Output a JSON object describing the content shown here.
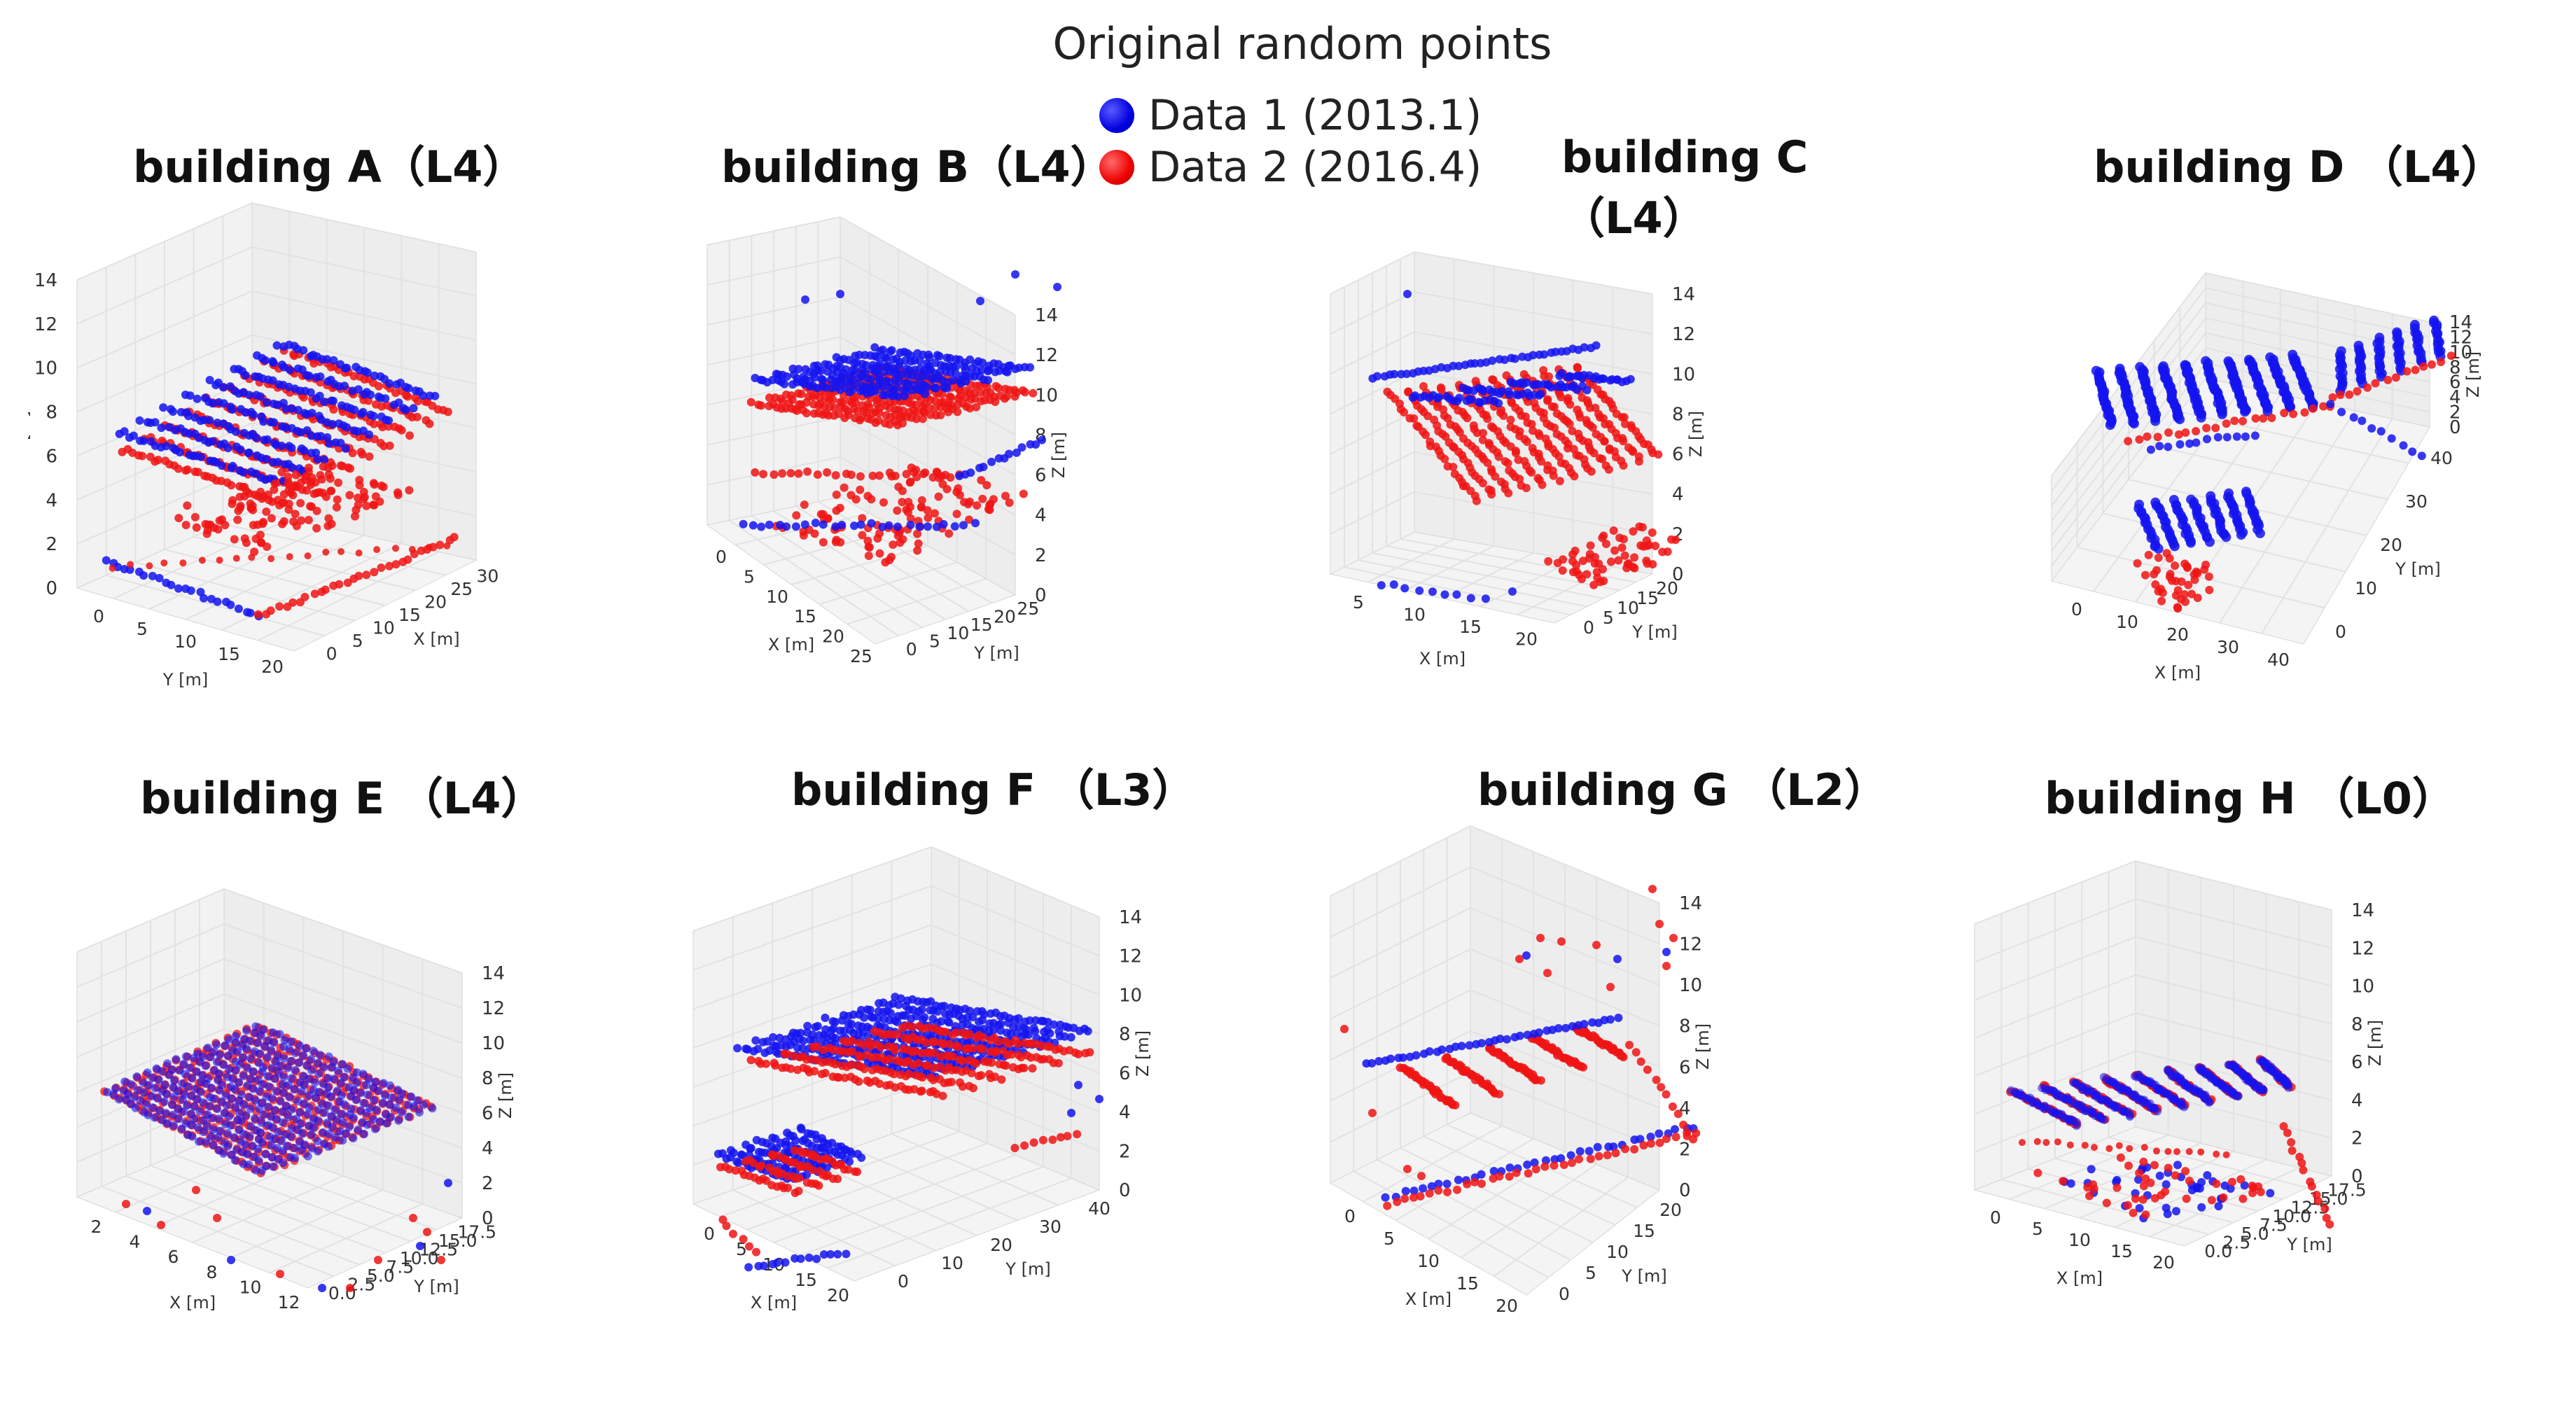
{
  "legend": {
    "title": "Original random points",
    "entries": [
      {
        "label": "Data 1 (2013.1)",
        "color": "#0000ff"
      },
      {
        "label": "Data 2 (2016.4)",
        "color": "#ff0000"
      }
    ]
  },
  "chart_data": [
    {
      "type": "scatter3d",
      "title": "building A（L4）",
      "view": "A",
      "axes": {
        "z": {
          "label": "Z [m]",
          "ticks": [
            "0",
            "2",
            "4",
            "6",
            "8",
            "10",
            "12",
            "14"
          ]
        },
        "y": {
          "label": "Y [m]",
          "ticks": [
            "0",
            "5",
            "10",
            "15",
            "20"
          ]
        },
        "x": {
          "label": "X [m]",
          "ticks": [
            "0",
            "5",
            "10",
            "15",
            "20",
            "25",
            "30"
          ]
        }
      },
      "series": [
        {
          "name": "Data 1 (2013.1)",
          "color": "#0000ff"
        },
        {
          "name": "Data 2 (2016.4)",
          "color": "#ff0000"
        }
      ]
    },
    {
      "type": "scatter3d",
      "title": "building B（L4）",
      "view": "B",
      "axes": {
        "x": {
          "label": "X [m]",
          "ticks": [
            "0",
            "5",
            "10",
            "15",
            "20",
            "25"
          ]
        },
        "y": {
          "label": "Y [m]",
          "ticks": [
            "0",
            "5",
            "10",
            "15",
            "20",
            "25"
          ]
        },
        "z": {
          "label": "Z [m]",
          "ticks": [
            "0",
            "2",
            "4",
            "6",
            "8",
            "10",
            "12",
            "14"
          ]
        }
      },
      "series": [
        {
          "name": "Data 1 (2013.1)",
          "color": "#0000ff"
        },
        {
          "name": "Data 2 (2016.4)",
          "color": "#ff0000"
        }
      ]
    },
    {
      "type": "scatter3d",
      "title": "building C （L4）",
      "view": "C",
      "axes": {
        "x": {
          "label": "X [m]",
          "ticks": [
            "5",
            "10",
            "15",
            "20"
          ]
        },
        "y": {
          "label": "Y [m]",
          "ticks": [
            "0",
            "5",
            "10",
            "15",
            "20"
          ]
        },
        "z": {
          "label": "Z [m]",
          "ticks": [
            "0",
            "2",
            "4",
            "6",
            "8",
            "10",
            "12",
            "14"
          ]
        }
      },
      "series": [
        {
          "name": "Data 1 (2013.1)",
          "color": "#0000ff"
        },
        {
          "name": "Data 2 (2016.4)",
          "color": "#ff0000"
        }
      ]
    },
    {
      "type": "scatter3d",
      "title": "building D （L4）",
      "view": "D",
      "axes": {
        "x": {
          "label": "X [m]",
          "ticks": [
            "0",
            "10",
            "20",
            "30",
            "40"
          ]
        },
        "y": {
          "label": "Y [m]",
          "ticks": [
            "0",
            "10",
            "20",
            "30",
            "40"
          ]
        },
        "z": {
          "label": "Z [m]",
          "ticks": [
            "0",
            "2",
            "4",
            "6",
            "8",
            "10",
            "12",
            "14"
          ]
        }
      },
      "series": [
        {
          "name": "Data 1 (2013.1)",
          "color": "#0000ff"
        },
        {
          "name": "Data 2 (2016.4)",
          "color": "#ff0000"
        }
      ]
    },
    {
      "type": "scatter3d",
      "title": "building E （L4）",
      "view": "E",
      "axes": {
        "x": {
          "label": "X [m]",
          "ticks": [
            "2",
            "4",
            "6",
            "8",
            "10",
            "12"
          ]
        },
        "y": {
          "label": "Y [m]",
          "ticks": [
            "0.0",
            "2.5",
            "5.0",
            "7.5",
            "10.0",
            "12.5",
            "15.0",
            "17.5"
          ]
        },
        "z": {
          "label": "Z [m]",
          "ticks": [
            "0",
            "2",
            "4",
            "6",
            "8",
            "10",
            "12",
            "14"
          ]
        }
      },
      "series": [
        {
          "name": "Data 1 (2013.1)",
          "color": "#0000ff"
        },
        {
          "name": "Data 2 (2016.4)",
          "color": "#ff0000"
        }
      ]
    },
    {
      "type": "scatter3d",
      "title": "building F （L3）",
      "view": "F",
      "axes": {
        "x": {
          "label": "X [m]",
          "ticks": [
            "0",
            "5",
            "10",
            "15",
            "20"
          ]
        },
        "y": {
          "label": "Y [m]",
          "ticks": [
            "0",
            "10",
            "20",
            "30",
            "40"
          ]
        },
        "z": {
          "label": "Z [m]",
          "ticks": [
            "0",
            "2",
            "4",
            "6",
            "8",
            "10",
            "12",
            "14"
          ]
        }
      },
      "series": [
        {
          "name": "Data 1 (2013.1)",
          "color": "#0000ff"
        },
        {
          "name": "Data 2 (2016.4)",
          "color": "#ff0000"
        }
      ]
    },
    {
      "type": "scatter3d",
      "title": "building G （L2）",
      "view": "G",
      "axes": {
        "x": {
          "label": "X [m]",
          "ticks": [
            "0",
            "5",
            "10",
            "15",
            "20"
          ]
        },
        "y": {
          "label": "Y [m]",
          "ticks": [
            "0",
            "5",
            "10",
            "15",
            "20"
          ]
        },
        "z": {
          "label": "Z [m]",
          "ticks": [
            "0",
            "2",
            "4",
            "6",
            "8",
            "10",
            "12",
            "14"
          ]
        }
      },
      "series": [
        {
          "name": "Data 1 (2013.1)",
          "color": "#0000ff"
        },
        {
          "name": "Data 2 (2016.4)",
          "color": "#ff0000"
        }
      ]
    },
    {
      "type": "scatter3d",
      "title": "building H （L0）",
      "view": "H",
      "axes": {
        "x": {
          "label": "X [m]",
          "ticks": [
            "0",
            "5",
            "10",
            "15",
            "20"
          ]
        },
        "y": {
          "label": "Y [m]",
          "ticks": [
            "0.0",
            "2.5",
            "5.0",
            "7.5",
            "10.0",
            "12.5",
            "15.0",
            "17.5"
          ]
        },
        "z": {
          "label": "Z [m]",
          "ticks": [
            "0",
            "2",
            "4",
            "6",
            "8",
            "10",
            "12",
            "14"
          ]
        }
      },
      "series": [
        {
          "name": "Data 1 (2013.1)",
          "color": "#0000ff"
        },
        {
          "name": "Data 2 (2016.4)",
          "color": "#ff0000"
        }
      ]
    }
  ]
}
